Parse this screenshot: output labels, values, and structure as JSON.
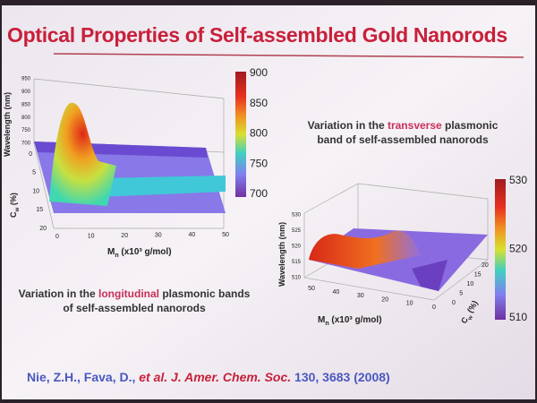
{
  "title": "Optical Properties of Self-assembled Gold Nanorods",
  "left_plot": {
    "y_label": "Wavelength (nm)",
    "y_ticks": [
      950,
      900,
      850,
      800,
      750,
      700
    ],
    "cw_label": {
      "main": "C",
      "sub": "w",
      "rest": " (%)"
    },
    "cw_ticks": [
      0,
      5,
      10,
      15,
      20
    ],
    "mn_label": {
      "main": "M",
      "sub": "n",
      "rest": " (x10³ g/mol)"
    },
    "mn_ticks": [
      0,
      10,
      20,
      30,
      40,
      50
    ],
    "colorbar_ticks": [
      900,
      850,
      800,
      750,
      700
    ],
    "caption": {
      "before": "Variation in the ",
      "highlight": "longitudinal",
      "after": " plasmonic bands of self-assembled nanorods"
    }
  },
  "right_plot": {
    "caption": {
      "before": "Variation in the ",
      "highlight": "transverse",
      "after": " plasmonic band of self-assembled nanorods"
    },
    "y_label": "Wavelength (nm)",
    "y_ticks": [
      530,
      525,
      520,
      515,
      510
    ],
    "mn_label": {
      "main": "M",
      "sub": "n",
      "rest": " (x10³ g/mol)"
    },
    "mn_ticks": [
      50,
      40,
      30,
      20,
      10,
      0
    ],
    "cw_label": {
      "main": "C",
      "sub": "w",
      "rest": " (%)"
    },
    "cw_ticks": [
      0,
      5,
      10,
      15,
      20
    ],
    "colorbar_ticks": [
      530,
      520,
      510
    ]
  },
  "citation": {
    "authors": "Nie, Z.H., Fava, D., ",
    "etal": "et al.",
    "journal": " J. Amer. Chem. Soc.",
    "ref": " 130, 3683 (2008)"
  }
}
